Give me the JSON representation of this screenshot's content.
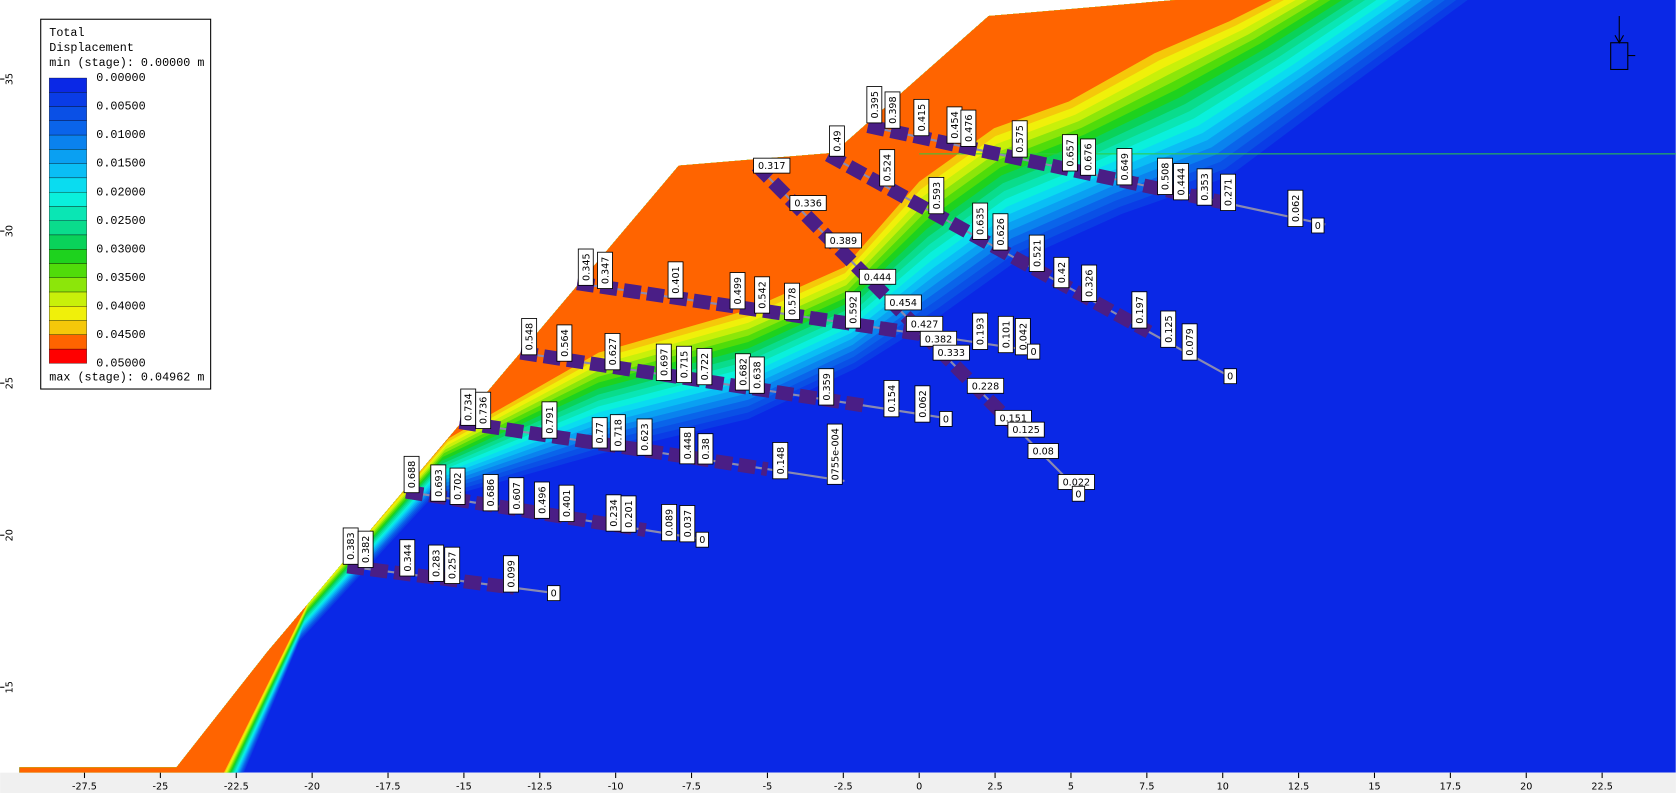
{
  "chart_data": {
    "type": "contour",
    "legend_title": [
      "Total",
      "Displacement"
    ],
    "legend_min": "min (stage): 0.00000 m",
    "legend_max": "max (stage): 0.04962 m",
    "legend_ticks": [
      {
        "value": 0,
        "label": "0.00000"
      },
      {
        "value": 0.005,
        "label": "0.00500"
      },
      {
        "value": 0.01,
        "label": "0.01000"
      },
      {
        "value": 0.015,
        "label": "0.01500"
      },
      {
        "value": 0.02,
        "label": "0.02000"
      },
      {
        "value": 0.025,
        "label": "0.02500"
      },
      {
        "value": 0.03,
        "label": "0.03000"
      },
      {
        "value": 0.035,
        "label": "0.03500"
      },
      {
        "value": 0.04,
        "label": "0.04000"
      },
      {
        "value": 0.045,
        "label": "0.04500"
      },
      {
        "value": 0.05,
        "label": "0.05000"
      }
    ],
    "legend_colors": [
      "#0a28e6",
      "#0a3ce6",
      "#0a50e6",
      "#0a64ea",
      "#0a82ee",
      "#0aa0f2",
      "#0abef5",
      "#0adcf0",
      "#0af0dc",
      "#0ae6b4",
      "#0adc8c",
      "#0ad25a",
      "#1ed21e",
      "#50dc0a",
      "#8ce60a",
      "#c8f00a",
      "#f0f00a",
      "#f5c80a",
      "#ff6400",
      "#ff0000"
    ],
    "xlim": [
      -30.28,
      24.93
    ],
    "ylim": [
      12.19,
      37.6
    ],
    "xticks": [
      -27.5,
      -25,
      -22.5,
      -20,
      -17.5,
      -15,
      -12.5,
      -10,
      -7.5,
      -5,
      -2.5,
      0,
      2.5,
      5,
      7.5,
      10,
      12.5,
      15,
      17.5,
      20,
      22.5
    ],
    "yticks": [
      15,
      20,
      25,
      30,
      35
    ],
    "annotations": [
      "0.395",
      "0.398",
      "0.415",
      "0.454",
      "0.476",
      "0.575",
      "0.657",
      "0.676",
      "0.649",
      "0.508",
      "0.444",
      "0.353",
      "0.271",
      "0.062",
      "0",
      "0.49",
      "0.317",
      "0.336",
      "0.389",
      "0.444",
      "0.454",
      "0.427",
      "0.382",
      "0.333",
      "0.228",
      "0.151",
      "0.125",
      "0.08",
      "0.022",
      "0",
      "0.524",
      "0.593",
      "0.635",
      "0.626",
      "0.521",
      "0.42",
      "0.326",
      "0.197",
      "0.125",
      "0.079",
      "0",
      "0.345",
      "0.347",
      "0.401",
      "0.499",
      "0.542",
      "0.578",
      "0.592",
      "0.193",
      "0.101",
      "0.042",
      "0",
      "0.548",
      "0.564",
      "0.627",
      "0.697",
      "0.715",
      "0.722",
      "0.682",
      "0.638",
      "0.359",
      "0.154",
      "0.062",
      "0",
      "0.734",
      "0.736",
      "0.791",
      "0.77",
      "0.718",
      "0.623",
      "0.448",
      "0.38",
      "0.148",
      "0755e-004",
      "0.688",
      "0.693",
      "0.702",
      "0.686",
      "0.607",
      "0.496",
      "0.401",
      "0.234",
      "0.201",
      "0.089",
      "0.037",
      "0",
      "0.383",
      "0.382",
      "0.344",
      "0.283",
      "0.257",
      "0.099",
      "0"
    ]
  }
}
